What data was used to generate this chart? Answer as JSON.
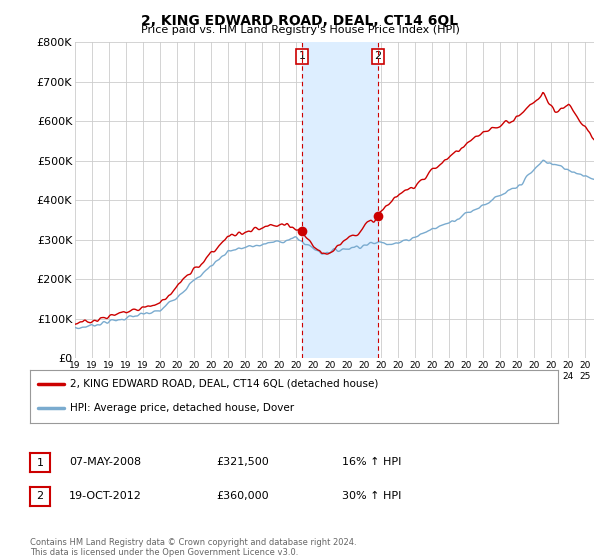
{
  "title": "2, KING EDWARD ROAD, DEAL, CT14 6QL",
  "subtitle": "Price paid vs. HM Land Registry's House Price Index (HPI)",
  "ylim": [
    0,
    800000
  ],
  "xlim_start": 1995.0,
  "xlim_end": 2025.5,
  "sale1_date": 2008.35,
  "sale1_label": "1",
  "sale1_price": 321500,
  "sale2_date": 2012.8,
  "sale2_label": "2",
  "sale2_price": 360000,
  "shaded_region_x1": 2008.35,
  "shaded_region_x2": 2012.8,
  "legend_line1": "2, KING EDWARD ROAD, DEAL, CT14 6QL (detached house)",
  "legend_line2": "HPI: Average price, detached house, Dover",
  "table_row1_date": "07-MAY-2008",
  "table_row1_price": "£321,500",
  "table_row1_hpi": "16% ↑ HPI",
  "table_row2_date": "19-OCT-2012",
  "table_row2_price": "£360,000",
  "table_row2_hpi": "30% ↑ HPI",
  "footer": "Contains HM Land Registry data © Crown copyright and database right 2024.\nThis data is licensed under the Open Government Licence v3.0.",
  "red_color": "#cc0000",
  "blue_color": "#7aabcf",
  "shaded_color": "#ddeeff",
  "background_color": "#ffffff",
  "grid_color": "#cccccc"
}
